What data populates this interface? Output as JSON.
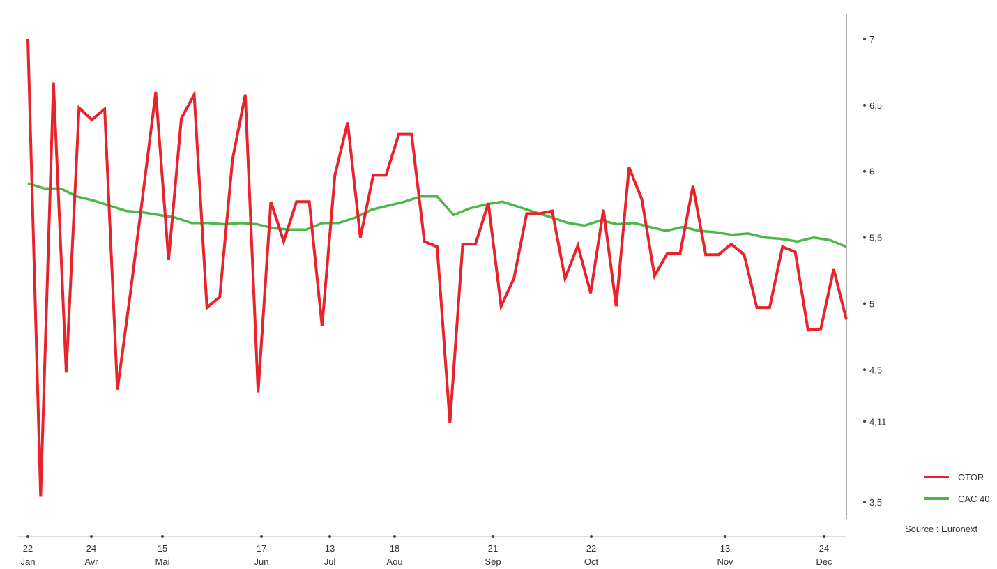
{
  "chart_data": {
    "type": "line",
    "title": "",
    "xlabel": "",
    "ylabel": "",
    "ylim": [
      3.5,
      7
    ],
    "grid": true,
    "legend_position": "bottom-right",
    "x_ticks": [
      {
        "day": "22",
        "month": "Jan"
      },
      {
        "day": "24",
        "month": "Avr"
      },
      {
        "day": "15",
        "month": "Mai"
      },
      {
        "day": "17",
        "month": "Jun"
      },
      {
        "day": "13",
        "month": "Jul"
      },
      {
        "day": "18",
        "month": "Aou"
      },
      {
        "day": "21",
        "month": "Sep"
      },
      {
        "day": "22",
        "month": "Oct"
      },
      {
        "day": "13",
        "month": "Nov"
      },
      {
        "day": "24",
        "month": "Dec"
      }
    ],
    "y_ticks": [
      {
        "value": 7,
        "label": "7"
      },
      {
        "value": 6.5,
        "label": "6,5"
      },
      {
        "value": 6,
        "label": "6"
      },
      {
        "value": 5.5,
        "label": "5,5"
      },
      {
        "value": 5,
        "label": "5"
      },
      {
        "value": 4.5,
        "label": "4,5"
      },
      {
        "value": 4.11,
        "label": "4,11"
      },
      {
        "value": 3.5,
        "label": "3,5"
      }
    ],
    "series": [
      {
        "name": "OTOR",
        "color": "#e8232b",
        "values": [
          7.0,
          3.54,
          6.67,
          4.48,
          6.48,
          6.39,
          6.47,
          4.35,
          5.07,
          5.83,
          6.6,
          5.33,
          6.4,
          6.58,
          4.97,
          5.05,
          6.09,
          6.58,
          4.33,
          5.77,
          5.47,
          5.77,
          5.77,
          4.83,
          5.97,
          6.37,
          5.5,
          5.97,
          5.97,
          6.28,
          6.28,
          5.47,
          5.43,
          4.1,
          5.45,
          5.45,
          5.76,
          4.98,
          5.19,
          5.68,
          5.68,
          5.7,
          5.19,
          5.44,
          5.08,
          5.71,
          4.98,
          6.03,
          5.79,
          5.21,
          5.38,
          5.38,
          5.89,
          5.37,
          5.37,
          5.45,
          5.37,
          4.97,
          4.97,
          5.43,
          5.39,
          4.8,
          4.81,
          5.26,
          4.88
        ]
      },
      {
        "name": "CAC 40",
        "color": "#4cb848",
        "values": [
          5.91,
          5.87,
          5.87,
          5.81,
          5.78,
          5.74,
          5.7,
          5.69,
          5.67,
          5.65,
          5.61,
          5.61,
          5.6,
          5.61,
          5.6,
          5.57,
          5.56,
          5.56,
          5.61,
          5.61,
          5.65,
          5.71,
          5.74,
          5.77,
          5.81,
          5.81,
          5.67,
          5.72,
          5.75,
          5.77,
          5.73,
          5.69,
          5.65,
          5.61,
          5.59,
          5.63,
          5.6,
          5.61,
          5.58,
          5.55,
          5.58,
          5.55,
          5.54,
          5.52,
          5.53,
          5.5,
          5.49,
          5.47,
          5.5,
          5.48,
          5.43
        ]
      }
    ],
    "source": "Source : Euronext"
  }
}
